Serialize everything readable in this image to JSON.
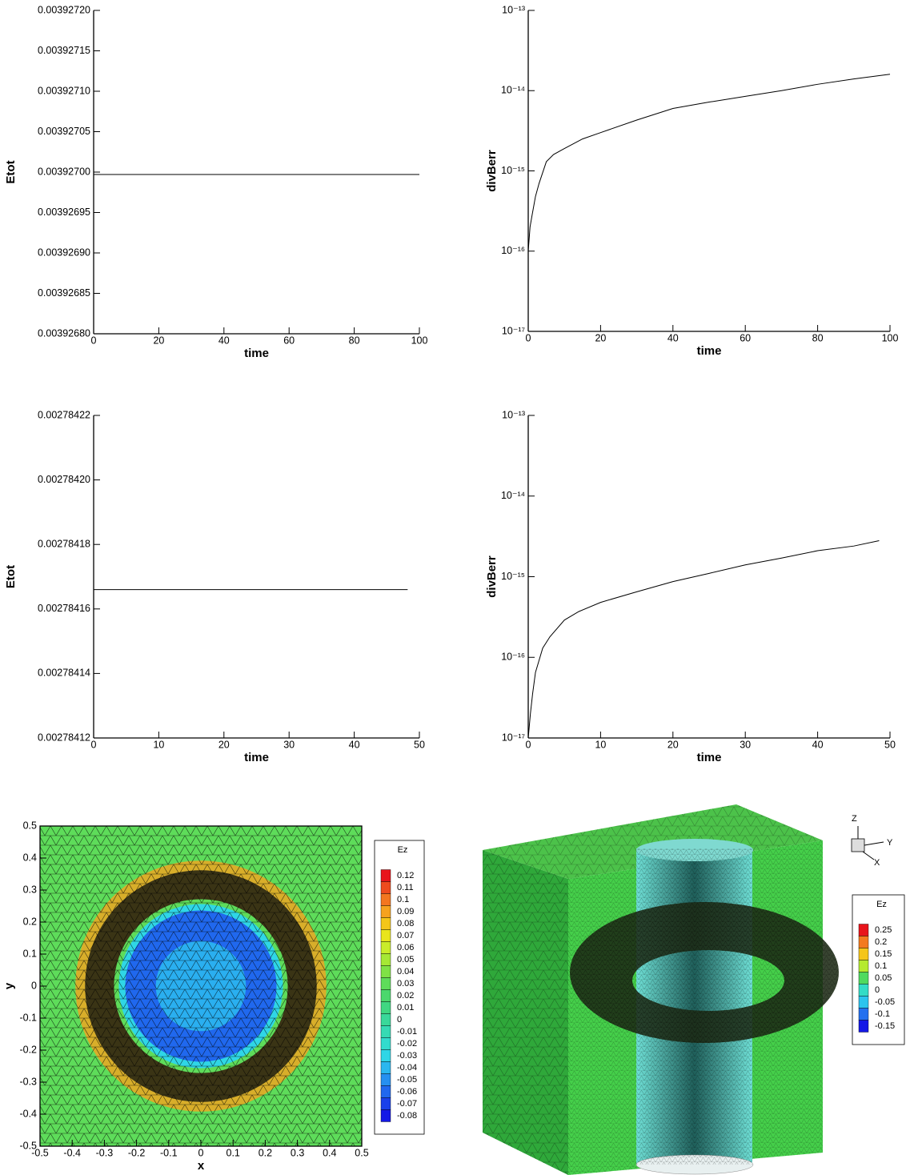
{
  "chart_data": [
    {
      "type": "line",
      "x_label": "time",
      "y_label": "Etot",
      "color": "#000000",
      "xlim": [
        0,
        100
      ],
      "xticks": [
        0,
        20,
        40,
        60,
        80,
        100
      ],
      "ylim": [
        0.0039268,
        0.0039272
      ],
      "yticks": [
        {
          "value": 0.0039268,
          "label": "0.00392680"
        },
        0.00392685,
        {
          "value": 0.0039269,
          "label": "0.00392690"
        },
        0.00392695,
        {
          "value": 0.003927,
          "label": "0.00392700"
        },
        0.00392705,
        {
          "value": 0.0039271,
          "label": "0.00392710"
        },
        0.00392715,
        {
          "value": 0.0039272,
          "label": "0.00392720"
        }
      ],
      "x": [
        0,
        100
      ],
      "values": [
        0.003926997,
        0.003926997
      ]
    },
    {
      "type": "line",
      "x_label": "time",
      "y_label": "divBerr",
      "color": "#000000",
      "log_y": true,
      "xlim": [
        0,
        100
      ],
      "xticks": [
        0,
        20,
        40,
        60,
        80,
        100
      ],
      "ylim": [
        1e-17,
        1e-13
      ],
      "yticks": [
        {
          "value": 1e-17,
          "label": "10⁻¹⁷"
        },
        {
          "value": 1e-16,
          "label": "10⁻¹⁶"
        },
        {
          "value": 1e-15,
          "label": "10⁻¹⁵"
        },
        {
          "value": 1e-14,
          "label": "10⁻¹⁴"
        },
        {
          "value": 1e-13,
          "label": "10⁻¹³"
        }
      ],
      "x": [
        0,
        0.5,
        1,
        2,
        3,
        5,
        7,
        10,
        15,
        20,
        30,
        40,
        50,
        60,
        70,
        80,
        90,
        100
      ],
      "values": [
        1e-16,
        2e-16,
        2.7e-16,
        4.8e-16,
        7e-16,
        1.3e-15,
        1.6e-15,
        1.9e-15,
        2.5e-15,
        3e-15,
        4.3e-15,
        6e-15,
        7.2e-15,
        8.5e-15,
        1e-14,
        1.2e-14,
        1.4e-14,
        1.6e-14
      ]
    },
    {
      "type": "line",
      "x_label": "time",
      "y_label": "Etot",
      "color": "#000000",
      "xlim": [
        0,
        50
      ],
      "xticks": [
        0,
        10,
        20,
        30,
        40,
        50
      ],
      "ylim": [
        0.00278412,
        0.00278422
      ],
      "yticks": [
        0.00278412,
        0.00278414,
        0.00278416,
        0.00278418,
        {
          "value": 0.0027842,
          "label": "0.00278420"
        },
        0.00278422
      ],
      "x": [
        0,
        48.2
      ],
      "values": [
        0.002784166,
        0.002784166
      ]
    },
    {
      "type": "line",
      "x_label": "time",
      "y_label": "divBerr",
      "color": "#000000",
      "log_y": true,
      "xlim": [
        0,
        50
      ],
      "xticks": [
        0,
        10,
        20,
        30,
        40,
        50
      ],
      "ylim": [
        1e-17,
        1e-13
      ],
      "yticks": [
        {
          "value": 1e-17,
          "label": "10⁻¹⁷"
        },
        {
          "value": 1e-16,
          "label": "10⁻¹⁶"
        },
        {
          "value": 1e-15,
          "label": "10⁻¹⁵"
        },
        {
          "value": 1e-14,
          "label": "10⁻¹⁴"
        },
        {
          "value": 1e-13,
          "label": "10⁻¹³"
        }
      ],
      "x": [
        0,
        0.3,
        0.6,
        1,
        2,
        3,
        5,
        7,
        10,
        15,
        20,
        25,
        30,
        35,
        40,
        45,
        48.5
      ],
      "values": [
        1e-17,
        2e-17,
        3.5e-17,
        6.5e-17,
        1.3e-16,
        1.8e-16,
        2.9e-16,
        3.7e-16,
        4.8e-16,
        6.5e-16,
        8.7e-16,
        1.1e-15,
        1.4e-15,
        1.7e-15,
        2.1e-15,
        2.4e-15,
        2.8e-15
      ]
    },
    {
      "type": "contour",
      "x_label": "x",
      "y_label": "y",
      "xlim": [
        -0.5,
        0.5
      ],
      "xticks": [
        -0.5,
        -0.4,
        -0.3,
        -0.2,
        -0.1,
        0,
        0.1,
        0.2,
        0.3,
        0.4,
        0.5
      ],
      "ylim": [
        -0.5,
        0.5
      ],
      "yticks": [
        -0.5,
        -0.4,
        -0.3,
        -0.2,
        -0.1,
        0,
        0.1,
        0.2,
        0.3,
        0.4,
        0.5
      ],
      "colorbar": {
        "title": "Ez",
        "levels": [
          0.12,
          0.11,
          0.1,
          0.09,
          0.08,
          0.07,
          0.06,
          0.05,
          0.04,
          0.03,
          0.02,
          0.01,
          0,
          -0.01,
          -0.02,
          -0.03,
          -0.04,
          -0.05,
          -0.06,
          -0.07,
          -0.08
        ],
        "colors": [
          "#e8141b",
          "#ee4b1e",
          "#f3761f",
          "#f6a21e",
          "#f4c619",
          "#e9e51c",
          "#c9ec2a",
          "#a6e835",
          "#7fe246",
          "#5edc5a",
          "#4bd86d",
          "#40d782",
          "#3ad89a",
          "#36dab4",
          "#32dccd",
          "#2fd6e6",
          "#2bb7ef",
          "#2690f0",
          "#2068ee",
          "#1a40ea",
          "#1418e6"
        ]
      }
    },
    {
      "type": "render3d",
      "triad": {
        "x": "X",
        "y": "Y",
        "z": "Z"
      },
      "colorbar": {
        "title": "Ez",
        "levels": [
          0.25,
          0.2,
          0.15,
          0.1,
          0.05,
          0,
          -0.05,
          -0.1,
          -0.15
        ],
        "colors": [
          "#e8141b",
          "#f37a1f",
          "#f5c51a",
          "#b5ea2f",
          "#4fda5f",
          "#33dcc6",
          "#2cc4ee",
          "#2370ef",
          "#1418e6"
        ]
      }
    }
  ]
}
